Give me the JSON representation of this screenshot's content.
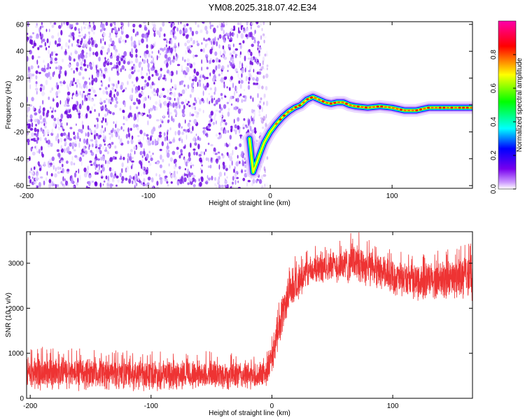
{
  "title": "YM08.2025.318.07.42.E34",
  "chart_data": [
    {
      "type": "heatmap",
      "name": "spectrogram",
      "xlabel": "Height of straight line (km)",
      "ylabel": "Frequency (Hz)",
      "xlim": [
        -200,
        166
      ],
      "ylim": [
        -62,
        62
      ],
      "xticks": [
        -200,
        -100,
        0,
        100
      ],
      "yticks": [
        -60,
        -40,
        -20,
        0,
        20,
        40,
        60
      ],
      "colorbar": {
        "label": "Normalized spectral amplitude",
        "range": [
          0,
          1
        ],
        "ticks": [
          "0.0",
          "0.2",
          "0.4",
          "0.6",
          "0.8"
        ],
        "colormap": [
          "#ffffff",
          "#7700ee",
          "#0000ff",
          "#00ffff",
          "#00ff00",
          "#ffff00",
          "#ff0000",
          "#ff00aa"
        ]
      },
      "noise_region_x": [
        -200,
        -8
      ],
      "ridge": {
        "x": [
          -17,
          -14,
          -12,
          -10,
          -8,
          -5,
          0,
          5,
          10,
          15,
          20,
          25,
          30,
          35,
          40,
          45,
          50,
          55,
          60,
          65,
          70,
          80,
          90,
          100,
          110,
          120,
          130,
          140,
          150,
          166
        ],
        "freq": [
          -25,
          -50,
          -45,
          -40,
          -35,
          -28,
          -20,
          -14,
          -9,
          -5,
          -2,
          0,
          4,
          6,
          4,
          2,
          1,
          2,
          2,
          0,
          -1,
          -2,
          -1,
          -2,
          -4,
          -4,
          -2,
          -2,
          -2,
          -2
        ]
      }
    },
    {
      "type": "line",
      "name": "snr",
      "xlabel": "Height of straight line (km)",
      "ylabel": "SNR (10 * v/v)",
      "xlim": [
        -203,
        166
      ],
      "ylim": [
        0,
        3700
      ],
      "xticks": [
        -200,
        -100,
        0,
        100
      ],
      "yticks": [
        0,
        1000,
        2000,
        3000
      ],
      "color": "#ee3333",
      "envelope": {
        "x": [
          -203,
          -150,
          -100,
          -50,
          -10,
          -5,
          0,
          5,
          10,
          15,
          20,
          25,
          30,
          35,
          40,
          50,
          60,
          70,
          80,
          90,
          100,
          120,
          140,
          166
        ],
        "lower": [
          150,
          150,
          140,
          150,
          150,
          200,
          500,
          1000,
          1500,
          1900,
          2100,
          2300,
          2400,
          2500,
          2500,
          2550,
          2500,
          2500,
          2450,
          2350,
          2250,
          2150,
          2150,
          2150
        ],
        "upper": [
          1000,
          950,
          900,
          900,
          850,
          900,
          1300,
          2000,
          2500,
          2900,
          3000,
          3050,
          3150,
          3250,
          3250,
          3300,
          3400,
          3550,
          3350,
          3250,
          3100,
          3050,
          3100,
          3250
        ]
      }
    }
  ]
}
